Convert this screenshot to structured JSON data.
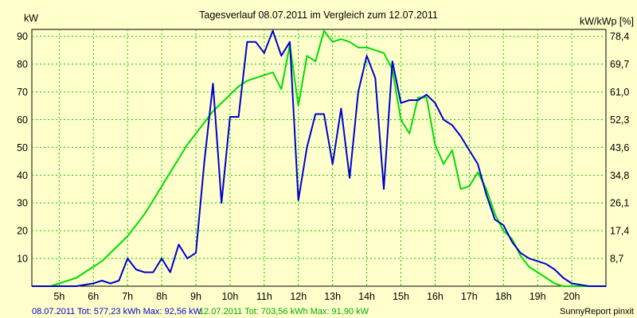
{
  "chart_data": {
    "type": "line",
    "title": "Tagesverlauf 08.07.2011 im Vergleich zum 12.07.2011",
    "ylabel_left": "kW",
    "ylabel_right": "kW/kWp [%]",
    "x_unit": "hour of day",
    "xlim": [
      4.2,
      21.0
    ],
    "ylim": [
      0,
      92.5
    ],
    "grid": true,
    "x_ticks": [
      {
        "value": 5,
        "label": "5h"
      },
      {
        "value": 6,
        "label": "6h"
      },
      {
        "value": 7,
        "label": "7h"
      },
      {
        "value": 8,
        "label": "8h"
      },
      {
        "value": 9,
        "label": "9h"
      },
      {
        "value": 10,
        "label": "10h"
      },
      {
        "value": 11,
        "label": "11h"
      },
      {
        "value": 12,
        "label": "12h"
      },
      {
        "value": 13,
        "label": "13h"
      },
      {
        "value": 14,
        "label": "14h"
      },
      {
        "value": 15,
        "label": "15h"
      },
      {
        "value": 16,
        "label": "16h"
      },
      {
        "value": 17,
        "label": "17h"
      },
      {
        "value": 18,
        "label": "18h"
      },
      {
        "value": 19,
        "label": "19h"
      },
      {
        "value": 20,
        "label": "20h"
      }
    ],
    "y_ticks_left": [
      {
        "value": 10,
        "label": "10"
      },
      {
        "value": 20,
        "label": "20"
      },
      {
        "value": 30,
        "label": "30"
      },
      {
        "value": 40,
        "label": "40"
      },
      {
        "value": 50,
        "label": "50"
      },
      {
        "value": 60,
        "label": "60"
      },
      {
        "value": 70,
        "label": "70"
      },
      {
        "value": 80,
        "label": "80"
      },
      {
        "value": 90,
        "label": "90"
      }
    ],
    "y_ticks_right": [
      {
        "value": 10,
        "label": "8,7"
      },
      {
        "value": 20,
        "label": "17,4"
      },
      {
        "value": 30,
        "label": "26,1"
      },
      {
        "value": 40,
        "label": "34,8"
      },
      {
        "value": 50,
        "label": "43,6"
      },
      {
        "value": 60,
        "label": "52,3"
      },
      {
        "value": 70,
        "label": "61,0"
      },
      {
        "value": 80,
        "label": "69,7"
      },
      {
        "value": 90,
        "label": "78,4"
      }
    ],
    "series": [
      {
        "name": "08.07.2011",
        "color": "#0000cc",
        "x": [
          4.2,
          5.5,
          6.0,
          6.25,
          6.5,
          6.75,
          7.0,
          7.25,
          7.5,
          7.75,
          8.0,
          8.25,
          8.5,
          8.75,
          9.0,
          9.25,
          9.5,
          9.75,
          10.0,
          10.25,
          10.5,
          10.75,
          11.0,
          11.25,
          11.5,
          11.75,
          12.0,
          12.25,
          12.5,
          12.75,
          13.0,
          13.25,
          13.5,
          13.75,
          14.0,
          14.25,
          14.5,
          14.75,
          15.0,
          15.25,
          15.5,
          15.75,
          16.0,
          16.25,
          16.5,
          16.75,
          17.0,
          17.25,
          17.5,
          17.75,
          18.0,
          18.25,
          18.5,
          18.75,
          19.0,
          19.25,
          19.5,
          19.75,
          20.0,
          20.5,
          21.0
        ],
        "values": [
          0,
          0,
          1,
          2,
          1,
          2,
          10,
          6,
          5,
          5,
          10,
          5,
          15,
          10,
          12,
          45,
          73,
          30,
          61,
          61,
          88,
          88,
          84,
          92,
          83,
          88,
          31,
          50,
          62,
          62,
          44,
          64,
          39,
          70,
          83,
          75,
          35,
          81,
          66,
          67,
          67,
          69,
          66,
          60,
          58,
          54,
          49,
          44,
          33,
          24,
          22,
          16,
          12,
          10,
          9,
          8,
          6,
          3,
          1,
          0,
          0
        ]
      },
      {
        "name": "12.07.2011",
        "color": "#00dd00",
        "x": [
          4.2,
          4.75,
          5.0,
          5.25,
          5.5,
          5.75,
          6.0,
          6.25,
          6.5,
          6.75,
          7.0,
          7.25,
          7.5,
          7.75,
          8.0,
          8.25,
          8.5,
          8.75,
          9.0,
          9.25,
          9.5,
          9.75,
          10.0,
          10.25,
          10.5,
          10.75,
          11.0,
          11.25,
          11.5,
          11.75,
          12.0,
          12.25,
          12.5,
          12.75,
          13.0,
          13.25,
          13.5,
          13.75,
          14.0,
          14.25,
          14.5,
          14.75,
          15.0,
          15.25,
          15.5,
          15.75,
          16.0,
          16.25,
          16.5,
          16.75,
          17.0,
          17.25,
          17.5,
          17.75,
          18.0,
          18.25,
          18.5,
          18.75,
          19.0,
          19.25,
          19.5,
          19.75,
          20.0,
          20.25,
          20.5
        ],
        "values": [
          0,
          0,
          1,
          2,
          3,
          5,
          7,
          9,
          12,
          15,
          18,
          22,
          26,
          31,
          36,
          41,
          46,
          51,
          55,
          59,
          63,
          66,
          69,
          72,
          74,
          75,
          76,
          77,
          71,
          87,
          65,
          83,
          81,
          92,
          88,
          89,
          88,
          86,
          86,
          85,
          84,
          78,
          60,
          55,
          68,
          68,
          51,
          44,
          49,
          35,
          36,
          41,
          35,
          26,
          20,
          17,
          11,
          7,
          5,
          3,
          1,
          0,
          0,
          0,
          0
        ]
      }
    ],
    "footer_left": "08.07.2011 Tot: 577,23 kWh Max: 92,56 kW",
    "footer_mid": "12.07.2011 Tot: 703,56 kWh Max: 91,90 kW",
    "footer_right": "SunnyReport pinxit"
  }
}
